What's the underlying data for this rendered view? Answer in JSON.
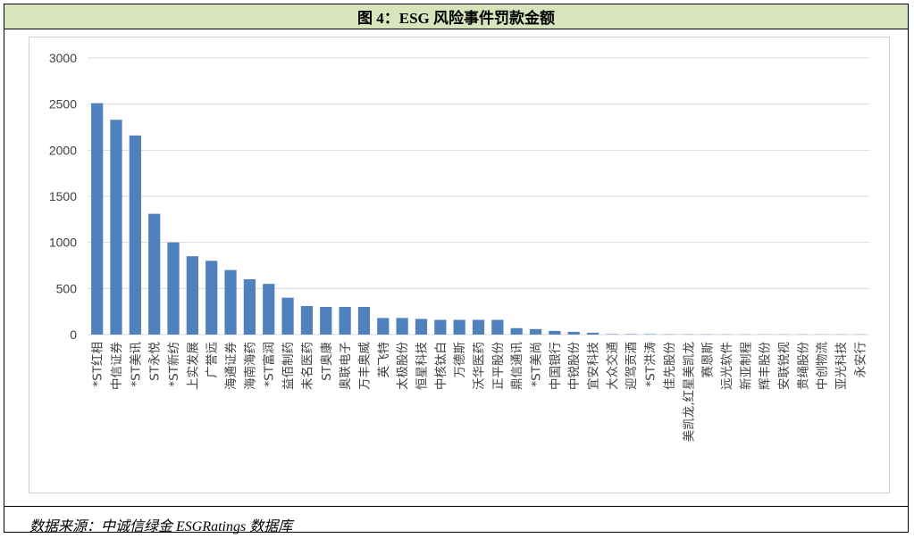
{
  "header": {
    "title": "图 4：ESG 风险事件罚款金额"
  },
  "footer": {
    "source": "数据来源：中诚信绿金 ESGRatings 数据库"
  },
  "colors": {
    "bar": "#4f81bd",
    "grid": "#d9d9d9",
    "header_bg": "#d8e4bc"
  },
  "chart_data": {
    "type": "bar",
    "title": "",
    "xlabel": "",
    "ylabel": "",
    "ylim": [
      0,
      3000
    ],
    "yticks": [
      "0",
      "500",
      "1000",
      "1500",
      "2000",
      "2500",
      "3000"
    ],
    "categories": [
      "*ST红相",
      "中信证券",
      "*ST美讯",
      "ST永悦",
      "*ST新纺",
      "上实发展",
      "广誉远",
      "海通证券",
      "海南海药",
      "*ST富润",
      "益佰制药",
      "未名医药",
      "ST奥康",
      "奥联电子",
      "万丰奥威",
      "英飞特",
      "太极股份",
      "恒星科技",
      "中核钛白",
      "万德斯",
      "沃华医药",
      "正平股份",
      "鼎信通讯",
      "*ST美尚",
      "中国银行",
      "中锐股份",
      "宜安科技",
      "大众交通",
      "迎驾贡酒",
      "*ST洪涛",
      "佳先股份",
      "美凯龙,红星美凯龙",
      "赛恩斯",
      "远光软件",
      "新亚制程",
      "辉丰股份",
      "安联锐视",
      "贵绳股份",
      "中创物流",
      "亚光科技",
      "永安行"
    ],
    "values": [
      2510,
      2330,
      2160,
      1310,
      1000,
      850,
      800,
      700,
      600,
      550,
      400,
      310,
      300,
      300,
      300,
      180,
      180,
      170,
      160,
      160,
      160,
      160,
      70,
      60,
      40,
      30,
      20,
      5,
      5,
      5,
      3,
      3,
      3,
      2,
      2,
      2,
      2,
      2,
      2,
      2,
      2
    ]
  }
}
